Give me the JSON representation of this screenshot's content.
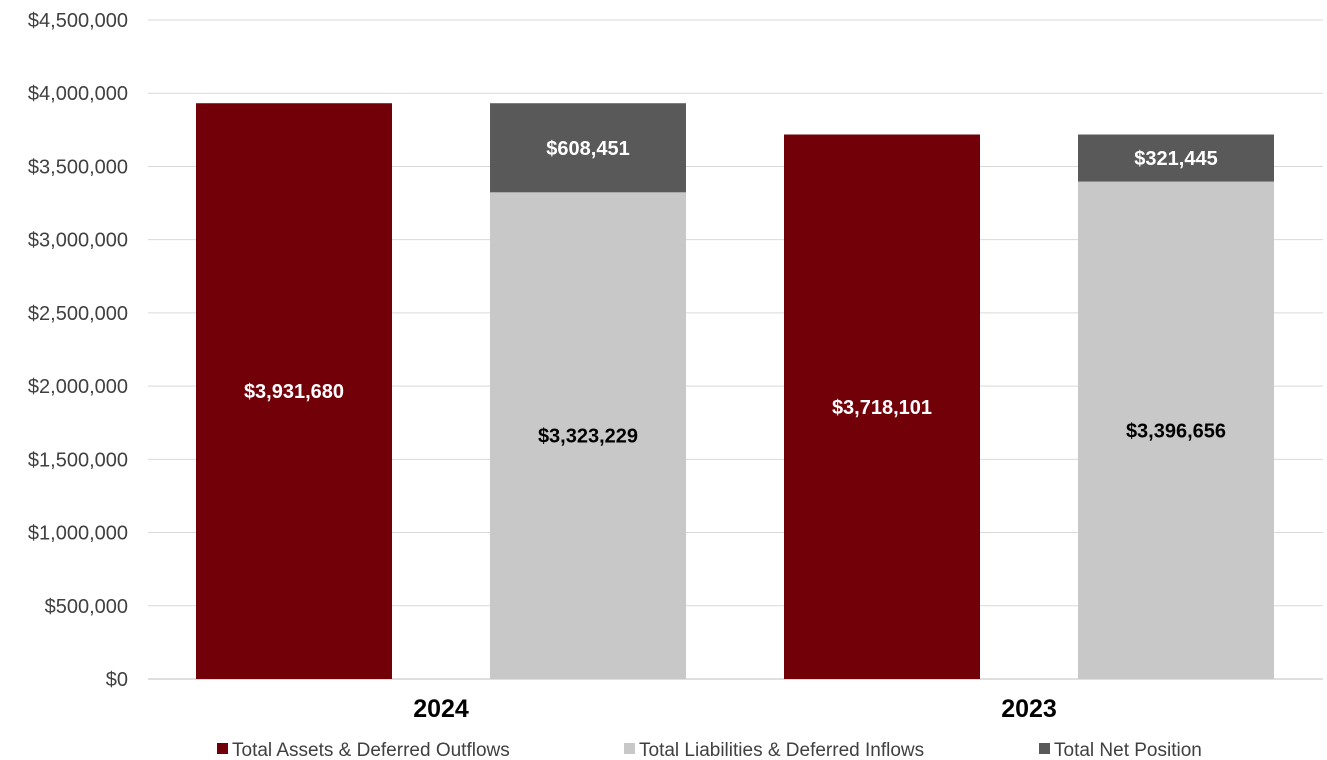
{
  "chart_data": {
    "type": "bar",
    "stacked": true,
    "categories": [
      "2024",
      "2023"
    ],
    "ylim": [
      0,
      4500000
    ],
    "ytick_step": 500000,
    "yticks": [
      "$0",
      "$500,000",
      "$1,000,000",
      "$1,500,000",
      "$2,000,000",
      "$2,500,000",
      "$3,000,000",
      "$3,500,000",
      "$4,000,000",
      "$4,500,000"
    ],
    "grid": true,
    "legend_position": "bottom",
    "groups": [
      {
        "category": "2024",
        "bars": [
          {
            "segments": [
              {
                "series": 0,
                "value": 3931680,
                "label": "$3,931,680"
              }
            ]
          },
          {
            "segments": [
              {
                "series": 1,
                "value": 3323229,
                "label": "$3,323,229"
              },
              {
                "series": 2,
                "value": 608451,
                "label": "$608,451"
              }
            ]
          }
        ]
      },
      {
        "category": "2023",
        "bars": [
          {
            "segments": [
              {
                "series": 0,
                "value": 3718101,
                "label": "$3,718,101"
              }
            ]
          },
          {
            "segments": [
              {
                "series": 1,
                "value": 3396656,
                "label": "$3,396,656"
              },
              {
                "series": 2,
                "value": 321445,
                "label": "$321,445"
              }
            ]
          }
        ]
      }
    ],
    "series": [
      {
        "name": "Total Assets & Deferred Outflows",
        "color": "#720008",
        "label_color": "#ffffff"
      },
      {
        "name": "Total Liabilities & Deferred Inflows",
        "color": "#c8c8c8",
        "label_color": "#000000"
      },
      {
        "name": "Total Net Position",
        "color": "#595959",
        "label_color": "#ffffff"
      }
    ]
  }
}
